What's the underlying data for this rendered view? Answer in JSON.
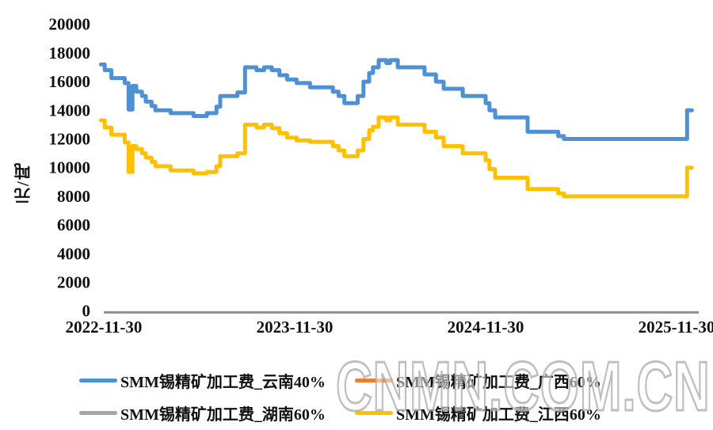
{
  "watermark": {
    "text": "CNMN.COM.CN"
  },
  "legend": {
    "items": [
      {
        "label": "SMM锡精矿加工费_云南40%",
        "color": "#4F90D5"
      },
      {
        "label": "SMM锡精矿加工费_广西60%",
        "color": "#ED7D31"
      },
      {
        "label": "SMM锡精矿加工费_湖南60%",
        "color": "#A6A6A6"
      },
      {
        "label": "SMM锡精矿加工费_江西60%",
        "color": "#FFC000"
      }
    ]
  },
  "chart_data": {
    "type": "line",
    "title": "",
    "xlabel": "",
    "ylabel": "元/吨",
    "grid": false,
    "legend_position": "bottom",
    "ylim": [
      0,
      20000
    ],
    "y_ticks": [
      0,
      2000,
      4000,
      6000,
      8000,
      10000,
      12000,
      14000,
      16000,
      18000,
      20000
    ],
    "x_tick_labels": [
      "2022-11-30",
      "2023-11-30",
      "2024-11-30",
      "2025-11-30"
    ],
    "x_tick_positions_years": [
      0,
      1,
      2,
      3
    ],
    "x_units": "years since 2022-11-30",
    "interpolation": "step-after",
    "x_end_years": 3.08,
    "series": [
      {
        "name": "SMM锡精矿加工费_云南40%",
        "color": "#4F90D5",
        "points": [
          [
            -0.015,
            17200
          ],
          [
            0.005,
            16800
          ],
          [
            0.04,
            16250
          ],
          [
            0.11,
            15900
          ],
          [
            0.13,
            14050
          ],
          [
            0.15,
            15700
          ],
          [
            0.17,
            15300
          ],
          [
            0.2,
            15000
          ],
          [
            0.22,
            14600
          ],
          [
            0.25,
            14300
          ],
          [
            0.27,
            14000
          ],
          [
            0.35,
            13800
          ],
          [
            0.47,
            13600
          ],
          [
            0.54,
            13800
          ],
          [
            0.59,
            14250
          ],
          [
            0.61,
            15000
          ],
          [
            0.7,
            15250
          ],
          [
            0.74,
            17000
          ],
          [
            0.8,
            16800
          ],
          [
            0.84,
            17000
          ],
          [
            0.88,
            16800
          ],
          [
            0.92,
            16450
          ],
          [
            0.96,
            16150
          ],
          [
            1.01,
            15900
          ],
          [
            1.08,
            15600
          ],
          [
            1.2,
            15300
          ],
          [
            1.23,
            15000
          ],
          [
            1.26,
            14500
          ],
          [
            1.33,
            15000
          ],
          [
            1.36,
            16000
          ],
          [
            1.39,
            16600
          ],
          [
            1.41,
            17000
          ],
          [
            1.44,
            17500
          ],
          [
            1.48,
            17300
          ],
          [
            1.5,
            17500
          ],
          [
            1.54,
            17000
          ],
          [
            1.68,
            16500
          ],
          [
            1.74,
            16000
          ],
          [
            1.78,
            15500
          ],
          [
            1.88,
            15000
          ],
          [
            2.0,
            14500
          ],
          [
            2.02,
            14000
          ],
          [
            2.05,
            13500
          ],
          [
            2.22,
            12500
          ],
          [
            2.38,
            12200
          ],
          [
            2.41,
            12000
          ],
          [
            3.055,
            14000
          ]
        ]
      },
      {
        "name": "SMM锡精矿加工费_广西60%",
        "color": "#ED7D31",
        "points": []
      },
      {
        "name": "SMM锡精矿加工费_湖南60%",
        "color": "#A6A6A6",
        "points": []
      },
      {
        "name": "SMM锡精矿加工费_江西60%",
        "color": "#FFC000",
        "points": [
          [
            -0.015,
            13300
          ],
          [
            0.005,
            12800
          ],
          [
            0.04,
            12300
          ],
          [
            0.11,
            11750
          ],
          [
            0.13,
            9700
          ],
          [
            0.15,
            11500
          ],
          [
            0.17,
            11300
          ],
          [
            0.2,
            11000
          ],
          [
            0.22,
            10700
          ],
          [
            0.25,
            10400
          ],
          [
            0.27,
            10100
          ],
          [
            0.35,
            9800
          ],
          [
            0.47,
            9600
          ],
          [
            0.54,
            9700
          ],
          [
            0.59,
            10100
          ],
          [
            0.61,
            10800
          ],
          [
            0.7,
            11000
          ],
          [
            0.74,
            13000
          ],
          [
            0.8,
            12800
          ],
          [
            0.84,
            13000
          ],
          [
            0.88,
            12750
          ],
          [
            0.92,
            12400
          ],
          [
            0.96,
            12100
          ],
          [
            1.01,
            11900
          ],
          [
            1.08,
            11800
          ],
          [
            1.2,
            11500
          ],
          [
            1.23,
            11200
          ],
          [
            1.26,
            10800
          ],
          [
            1.33,
            11200
          ],
          [
            1.36,
            12000
          ],
          [
            1.39,
            12600
          ],
          [
            1.41,
            12850
          ],
          [
            1.44,
            13500
          ],
          [
            1.48,
            13300
          ],
          [
            1.5,
            13500
          ],
          [
            1.54,
            13000
          ],
          [
            1.68,
            12500
          ],
          [
            1.74,
            12100
          ],
          [
            1.78,
            11500
          ],
          [
            1.88,
            11000
          ],
          [
            2.0,
            10500
          ],
          [
            2.02,
            9900
          ],
          [
            2.05,
            9300
          ],
          [
            2.22,
            8500
          ],
          [
            2.38,
            8200
          ],
          [
            2.41,
            8000
          ],
          [
            3.055,
            10000
          ]
        ]
      }
    ]
  }
}
